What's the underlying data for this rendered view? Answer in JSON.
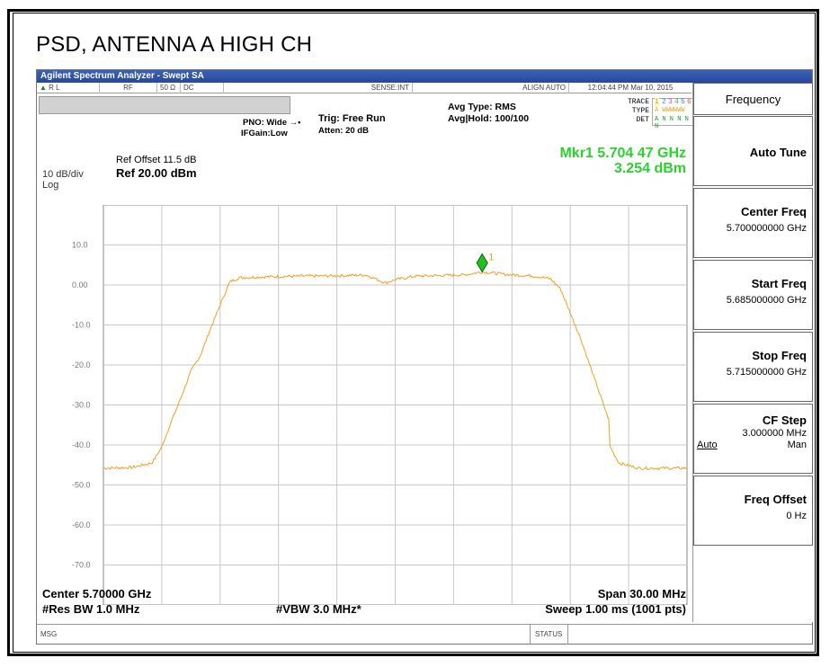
{
  "document": {
    "title": "PSD, ANTENNA A HIGH CH"
  },
  "window": {
    "title": "Agilent Spectrum Analyzer - Swept SA"
  },
  "status_row": {
    "rl": "R L",
    "rf": "RF",
    "impedance": "50 Ω",
    "coupling": "DC",
    "sense": "SENSE:INT",
    "align": "ALIGN AUTO",
    "datetime": "12:04:44 PM Mar 10, 2015"
  },
  "settings": {
    "pno": "PNO: Wide",
    "ifgain": "IFGain:Low",
    "trig": "Trig: Free Run",
    "atten": "Atten: 20 dB",
    "avg_type": "Avg Type: RMS",
    "avg_hold": "Avg|Hold: 100/100",
    "trace_label": "TRACE",
    "type_label": "TYPE",
    "det_label": "DET",
    "trace_nums": [
      "1",
      "2",
      "3",
      "4",
      "5",
      "6"
    ],
    "trace_type": "A WWWWWW",
    "trace_det": "A N N N N N"
  },
  "ref": {
    "offset": "Ref Offset 11.5 dB",
    "level": "Ref 20.00 dBm",
    "scale": "10 dB/div",
    "log": "Log"
  },
  "marker": {
    "label": "Mkr1 5.704 47 GHz",
    "value": "3.254 dBm",
    "number": "1"
  },
  "footer": {
    "center": "Center 5.70000 GHz",
    "span": "Span 30.00 MHz",
    "rbw": "#Res BW 1.0 MHz",
    "vbw": "#VBW 3.0 MHz*",
    "sweep": "Sweep  1.00 ms (1001 pts)",
    "msg": "MSG",
    "status": "STATUS"
  },
  "softkeys": {
    "menu_title": "Frequency",
    "auto_tune": "Auto Tune",
    "center_freq_label": "Center Freq",
    "center_freq_value": "5.700000000 GHz",
    "start_freq_label": "Start Freq",
    "start_freq_value": "5.685000000 GHz",
    "stop_freq_label": "Stop Freq",
    "stop_freq_value": "5.715000000 GHz",
    "cf_step_label": "CF Step",
    "cf_step_value": "3.000000 MHz",
    "cf_step_auto": "Auto",
    "cf_step_man": "Man",
    "freq_offset_label": "Freq Offset",
    "freq_offset_value": "0 Hz"
  },
  "chart_data": {
    "type": "line",
    "x_unit": "GHz",
    "y_unit": "dBm",
    "xlim": [
      5.685,
      5.715
    ],
    "ylim": [
      -80,
      20
    ],
    "y_tick_labels": [
      "10.0",
      "0.00",
      "-10.0",
      "-20.0",
      "-30.0",
      "-40.0",
      "-50.0",
      "-60.0",
      "-70.0"
    ],
    "grid": true,
    "trace_color": "#f0a020",
    "marker_color": "#22c022",
    "series": [
      {
        "x": [
          5.685,
          5.6865,
          5.6875,
          5.688,
          5.6885,
          5.689,
          5.6895,
          5.69,
          5.6905,
          5.691,
          5.6915,
          5.692,
          5.693,
          5.695,
          5.697,
          5.6985,
          5.699,
          5.6995,
          5.7,
          5.701,
          5.7035,
          5.70447,
          5.706,
          5.707,
          5.7075,
          5.708,
          5.7085,
          5.709,
          5.7095,
          5.71,
          5.7105,
          5.711,
          5.711,
          5.7115,
          5.7125,
          5.715
        ],
        "y": [
          -45.8,
          -45.6,
          -44.5,
          -40.5,
          -34.0,
          -28.0,
          -21.5,
          -17.5,
          -11.0,
          -5.0,
          0.8,
          1.8,
          2.0,
          2.2,
          2.3,
          2.5,
          1.5,
          0.5,
          1.3,
          2.2,
          2.5,
          3.254,
          2.5,
          2.3,
          2.0,
          1.5,
          -1.0,
          -7.0,
          -13.0,
          -20.0,
          -27.0,
          -34.0,
          -40.0,
          -44.5,
          -45.8,
          -45.8
        ]
      }
    ],
    "marker": {
      "x": 5.70447,
      "y": 3.254
    }
  }
}
